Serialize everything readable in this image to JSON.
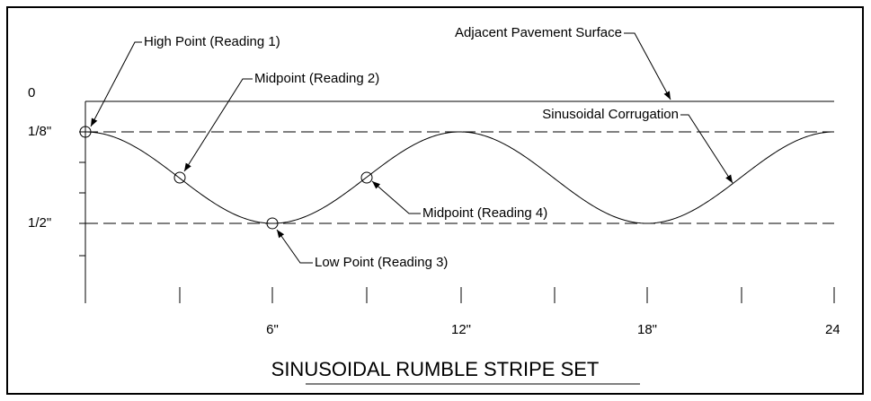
{
  "title": "SINUSOIDAL RUMBLE STRIPE SET",
  "y_labels": [
    "0",
    "1/8\"",
    "1/2\""
  ],
  "x_labels": [
    "6\"",
    "12\"",
    "18\"",
    "24"
  ],
  "annotations": {
    "high_point": "High Point (Reading 1)",
    "midpoint_2": "Midpoint (Reading 2)",
    "low_point": "Low Point (Reading 3)",
    "midpoint_4": "Midpoint (Reading 4)",
    "pavement": "Adjacent Pavement Surface",
    "corrugation": "Sinusoidal Corrugation"
  }
}
